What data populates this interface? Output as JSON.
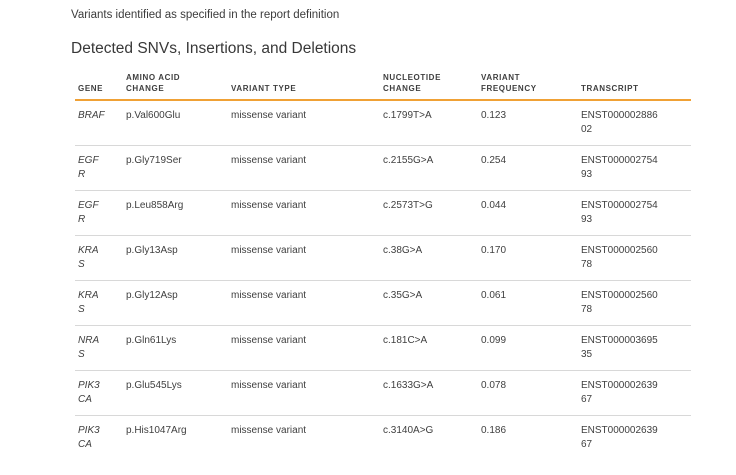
{
  "colors": {
    "accent": "#f0a135",
    "divider": "#d8d8d8",
    "text": "#3b3b3b"
  },
  "page": {
    "intro": "Variants identified as specified in the report definition",
    "heading": "Detected SNVs, Insertions, and Deletions"
  },
  "table": {
    "columns": [
      "Gene",
      "Amino Acid Change",
      "Variant Type",
      "Nucleotide Change",
      "Variant Frequency",
      "Transcript"
    ],
    "rows": [
      {
        "gene": "BRAF",
        "amino_acid_change": "p.Val600Glu",
        "variant_type": "missense variant",
        "nucleotide_change": "c.1799T>A",
        "variant_frequency": "0.123",
        "transcript": "ENST00000288602"
      },
      {
        "gene": "EGFR",
        "amino_acid_change": "p.Gly719Ser",
        "variant_type": "missense variant",
        "nucleotide_change": "c.2155G>A",
        "variant_frequency": "0.254",
        "transcript": "ENST00000275493"
      },
      {
        "gene": "EGFR",
        "amino_acid_change": "p.Leu858Arg",
        "variant_type": "missense variant",
        "nucleotide_change": "c.2573T>G",
        "variant_frequency": "0.044",
        "transcript": "ENST00000275493"
      },
      {
        "gene": "KRAS",
        "amino_acid_change": "p.Gly13Asp",
        "variant_type": "missense variant",
        "nucleotide_change": "c.38G>A",
        "variant_frequency": "0.170",
        "transcript": "ENST00000256078"
      },
      {
        "gene": "KRAS",
        "amino_acid_change": "p.Gly12Asp",
        "variant_type": "missense variant",
        "nucleotide_change": "c.35G>A",
        "variant_frequency": "0.061",
        "transcript": "ENST00000256078"
      },
      {
        "gene": "NRAS",
        "amino_acid_change": "p.Gln61Lys",
        "variant_type": "missense variant",
        "nucleotide_change": "c.181C>A",
        "variant_frequency": "0.099",
        "transcript": "ENST00000369535"
      },
      {
        "gene": "PIK3CA",
        "amino_acid_change": "p.Glu545Lys",
        "variant_type": "missense variant",
        "nucleotide_change": "c.1633G>A",
        "variant_frequency": "0.078",
        "transcript": "ENST00000263967"
      },
      {
        "gene": "PIK3CA",
        "amino_acid_change": "p.His1047Arg",
        "variant_type": "missense variant",
        "nucleotide_change": "c.3140A>G",
        "variant_frequency": "0.186",
        "transcript": "ENST00000263967"
      }
    ]
  }
}
